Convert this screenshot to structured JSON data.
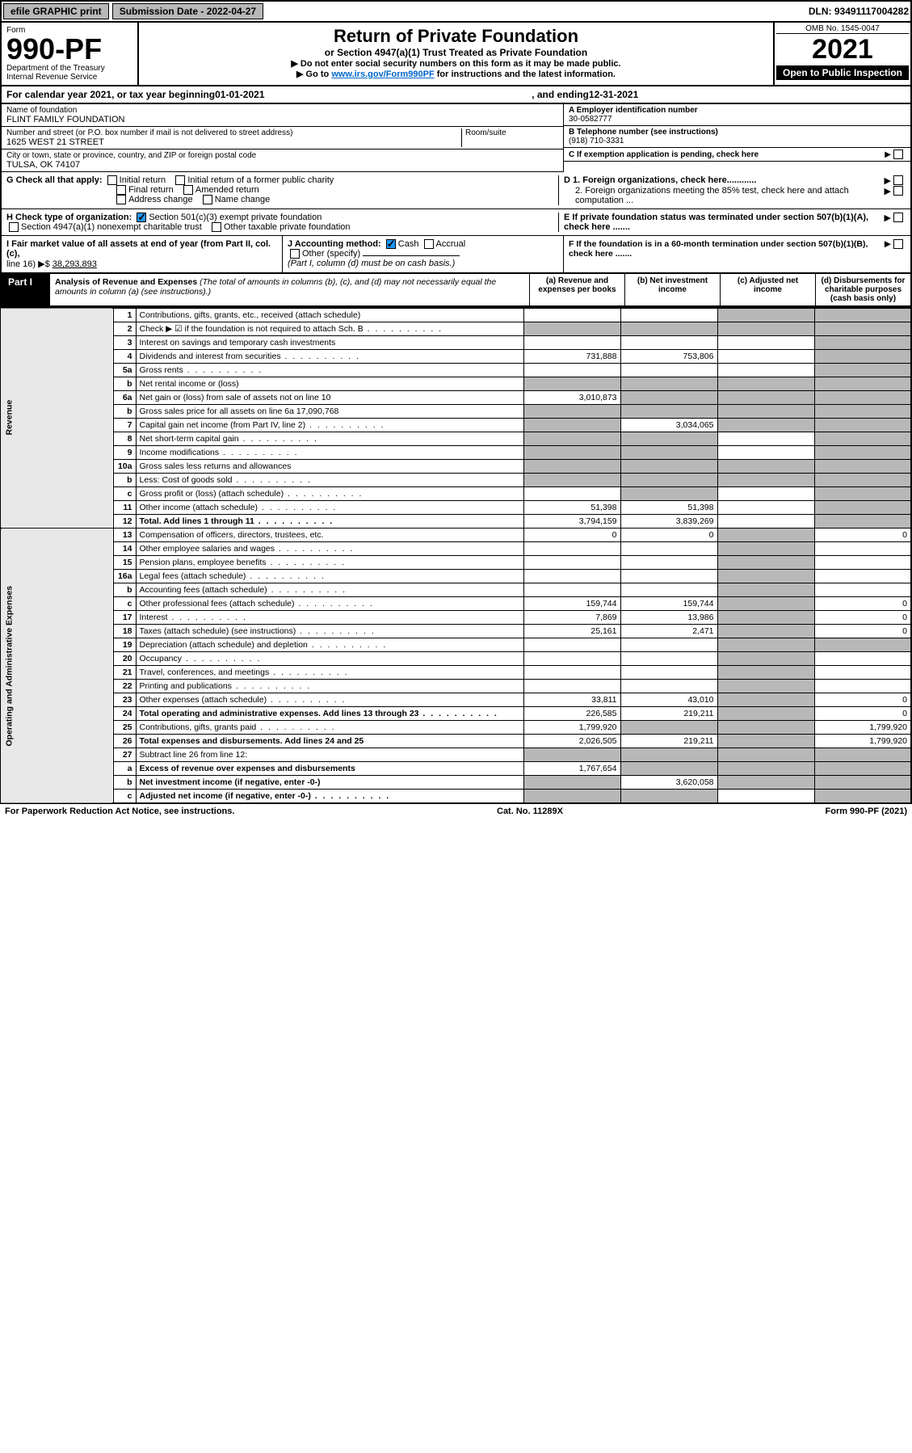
{
  "topbar": {
    "efile": "efile GRAPHIC print",
    "sub_label": "Submission Date - 2022-04-27",
    "dln": "DLN: 93491117004282"
  },
  "header": {
    "form_word": "Form",
    "form_no": "990-PF",
    "dept": "Department of the Treasury",
    "irs": "Internal Revenue Service",
    "title": "Return of Private Foundation",
    "subtitle": "or Section 4947(a)(1) Trust Treated as Private Foundation",
    "note1": "▶ Do not enter social security numbers on this form as it may be made public.",
    "note2_a": "▶ Go to ",
    "note2_link": "www.irs.gov/Form990PF",
    "note2_b": " for instructions and the latest information.",
    "omb": "OMB No. 1545-0047",
    "year": "2021",
    "open": "Open to Public Inspection"
  },
  "cal": {
    "text_a": "For calendar year 2021, or tax year beginning ",
    "begin": "01-01-2021",
    "text_b": ", and ending ",
    "end": "12-31-2021"
  },
  "name": {
    "label": "Name of foundation",
    "value": "FLINT FAMILY FOUNDATION",
    "addr_label": "Number and street (or P.O. box number if mail is not delivered to street address)",
    "addr": "1625 WEST 21 STREET",
    "room_label": "Room/suite",
    "city_label": "City or town, state or province, country, and ZIP or foreign postal code",
    "city": "TULSA, OK  74107"
  },
  "right": {
    "a_label": "A Employer identification number",
    "a_val": "30-0582777",
    "b_label": "B Telephone number (see instructions)",
    "b_val": "(918) 710-3331",
    "c_label": "C If exemption application is pending, check here",
    "d1": "D 1. Foreign organizations, check here............",
    "d2": "2. Foreign organizations meeting the 85% test, check here and attach computation ...",
    "e": "E  If private foundation status was terminated under section 507(b)(1)(A), check here .......",
    "f": "F  If the foundation is in a 60-month termination under section 507(b)(1)(B), check here ......."
  },
  "g": {
    "label": "G Check all that apply:",
    "opts": [
      "Initial return",
      "Initial return of a former public charity",
      "Final return",
      "Amended return",
      "Address change",
      "Name change"
    ]
  },
  "h": {
    "label": "H Check type of organization:",
    "o1": "Section 501(c)(3) exempt private foundation",
    "o2": "Section 4947(a)(1) nonexempt charitable trust",
    "o3": "Other taxable private foundation"
  },
  "i": {
    "label": "I Fair market value of all assets at end of year (from Part II, col. (c),",
    "line": "line 16) ▶$",
    "val": "38,293,893"
  },
  "j": {
    "label": "J Accounting method:",
    "cash": "Cash",
    "accrual": "Accrual",
    "other": "Other (specify)",
    "note": "(Part I, column (d) must be on cash basis.)"
  },
  "part1": {
    "tag": "Part I",
    "title": "Analysis of Revenue and Expenses",
    "sub": " (The total of amounts in columns (b), (c), and (d) may not necessarily equal the amounts in column (a) (see instructions).)",
    "col_a": "(a)   Revenue and expenses per books",
    "col_b": "(b)   Net investment income",
    "col_c": "(c)   Adjusted net income",
    "col_d": "(d)  Disbursements for charitable purposes (cash basis only)"
  },
  "section_labels": {
    "rev": "Revenue",
    "exp": "Operating and Administrative Expenses"
  },
  "rows": [
    {
      "n": "1",
      "d": "Contributions, gifts, grants, etc., received (attach schedule)",
      "a": "",
      "b": "",
      "c": "s",
      "ds": "s"
    },
    {
      "n": "2",
      "d": "Check ▶ ☑ if the foundation is not required to attach Sch. B",
      "a": "s",
      "b": "s",
      "c": "s",
      "ds": "s",
      "dots": true
    },
    {
      "n": "3",
      "d": "Interest on savings and temporary cash investments",
      "a": "",
      "b": "",
      "c": "",
      "ds": "s"
    },
    {
      "n": "4",
      "d": "Dividends and interest from securities",
      "a": "731,888",
      "b": "753,806",
      "c": "",
      "ds": "s",
      "dots": true
    },
    {
      "n": "5a",
      "d": "Gross rents",
      "a": "",
      "b": "",
      "c": "",
      "ds": "s",
      "dots": true
    },
    {
      "n": "b",
      "d": "Net rental income or (loss)",
      "a": "s",
      "b": "s",
      "c": "s",
      "ds": "s"
    },
    {
      "n": "6a",
      "d": "Net gain or (loss) from sale of assets not on line 10",
      "a": "3,010,873",
      "b": "s",
      "c": "s",
      "ds": "s"
    },
    {
      "n": "b",
      "d": "Gross sales price for all assets on line 6a  17,090,768",
      "a": "s",
      "b": "s",
      "c": "s",
      "ds": "s"
    },
    {
      "n": "7",
      "d": "Capital gain net income (from Part IV, line 2)",
      "a": "s",
      "b": "3,034,065",
      "c": "s",
      "ds": "s",
      "dots": true
    },
    {
      "n": "8",
      "d": "Net short-term capital gain",
      "a": "s",
      "b": "s",
      "c": "",
      "ds": "s",
      "dots": true
    },
    {
      "n": "9",
      "d": "Income modifications",
      "a": "s",
      "b": "s",
      "c": "",
      "ds": "s",
      "dots": true
    },
    {
      "n": "10a",
      "d": "Gross sales less returns and allowances",
      "a": "s",
      "b": "s",
      "c": "s",
      "ds": "s"
    },
    {
      "n": "b",
      "d": "Less: Cost of goods sold",
      "a": "s",
      "b": "s",
      "c": "s",
      "ds": "s",
      "dots": true
    },
    {
      "n": "c",
      "d": "Gross profit or (loss) (attach schedule)",
      "a": "",
      "b": "s",
      "c": "",
      "ds": "s",
      "dots": true
    },
    {
      "n": "11",
      "d": "Other income (attach schedule)",
      "a": "51,398",
      "b": "51,398",
      "c": "",
      "ds": "s",
      "dots": true
    },
    {
      "n": "12",
      "d": "Total. Add lines 1 through 11",
      "a": "3,794,159",
      "b": "3,839,269",
      "c": "",
      "ds": "s",
      "bold": true,
      "dots": true
    },
    {
      "n": "13",
      "d": "Compensation of officers, directors, trustees, etc.",
      "a": "0",
      "b": "0",
      "c": "s",
      "ds": "0"
    },
    {
      "n": "14",
      "d": "Other employee salaries and wages",
      "a": "",
      "b": "",
      "c": "s",
      "ds": "",
      "dots": true
    },
    {
      "n": "15",
      "d": "Pension plans, employee benefits",
      "a": "",
      "b": "",
      "c": "s",
      "ds": "",
      "dots": true
    },
    {
      "n": "16a",
      "d": "Legal fees (attach schedule)",
      "a": "",
      "b": "",
      "c": "s",
      "ds": "",
      "dots": true
    },
    {
      "n": "b",
      "d": "Accounting fees (attach schedule)",
      "a": "",
      "b": "",
      "c": "s",
      "ds": "",
      "dots": true
    },
    {
      "n": "c",
      "d": "Other professional fees (attach schedule)",
      "a": "159,744",
      "b": "159,744",
      "c": "s",
      "ds": "0",
      "dots": true
    },
    {
      "n": "17",
      "d": "Interest",
      "a": "7,869",
      "b": "13,986",
      "c": "s",
      "ds": "0",
      "dots": true
    },
    {
      "n": "18",
      "d": "Taxes (attach schedule) (see instructions)",
      "a": "25,161",
      "b": "2,471",
      "c": "s",
      "ds": "0",
      "dots": true
    },
    {
      "n": "19",
      "d": "Depreciation (attach schedule) and depletion",
      "a": "",
      "b": "",
      "c": "s",
      "ds": "s",
      "dots": true
    },
    {
      "n": "20",
      "d": "Occupancy",
      "a": "",
      "b": "",
      "c": "s",
      "ds": "",
      "dots": true
    },
    {
      "n": "21",
      "d": "Travel, conferences, and meetings",
      "a": "",
      "b": "",
      "c": "s",
      "ds": "",
      "dots": true
    },
    {
      "n": "22",
      "d": "Printing and publications",
      "a": "",
      "b": "",
      "c": "s",
      "ds": "",
      "dots": true
    },
    {
      "n": "23",
      "d": "Other expenses (attach schedule)",
      "a": "33,811",
      "b": "43,010",
      "c": "s",
      "ds": "0",
      "dots": true
    },
    {
      "n": "24",
      "d": "Total operating and administrative expenses. Add lines 13 through 23",
      "a": "226,585",
      "b": "219,211",
      "c": "s",
      "ds": "0",
      "bold": true,
      "dots": true
    },
    {
      "n": "25",
      "d": "Contributions, gifts, grants paid",
      "a": "1,799,920",
      "b": "s",
      "c": "s",
      "ds": "1,799,920",
      "dots": true
    },
    {
      "n": "26",
      "d": "Total expenses and disbursements. Add lines 24 and 25",
      "a": "2,026,505",
      "b": "219,211",
      "c": "s",
      "ds": "1,799,920",
      "bold": true
    },
    {
      "n": "27",
      "d": "Subtract line 26 from line 12:",
      "a": "s",
      "b": "s",
      "c": "s",
      "ds": "s"
    },
    {
      "n": "a",
      "d": "Excess of revenue over expenses and disbursements",
      "a": "1,767,654",
      "b": "s",
      "c": "s",
      "ds": "s",
      "bold": true
    },
    {
      "n": "b",
      "d": "Net investment income (if negative, enter -0-)",
      "a": "s",
      "b": "3,620,058",
      "c": "s",
      "ds": "s",
      "bold": true
    },
    {
      "n": "c",
      "d": "Adjusted net income (if negative, enter -0-)",
      "a": "s",
      "b": "s",
      "c": "",
      "ds": "s",
      "bold": true,
      "dots": true
    }
  ],
  "footer": {
    "left": "For Paperwork Reduction Act Notice, see instructions.",
    "mid": "Cat. No. 11289X",
    "right": "Form 990-PF (2021)"
  },
  "colors": {
    "shade": "#b8b8b8",
    "link": "#0066cc",
    "check": "#2196f3"
  }
}
